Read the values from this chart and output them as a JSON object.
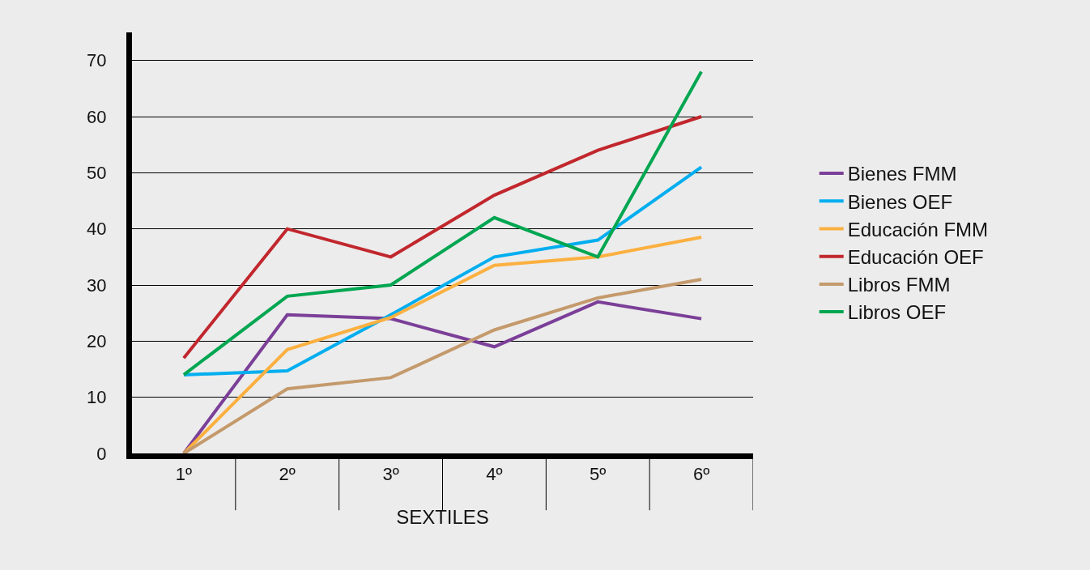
{
  "chart_data": {
    "type": "line",
    "xlabel": "SEXTILES",
    "categories": [
      "1º",
      "2º",
      "3º",
      "4º",
      "5º",
      "6º"
    ],
    "ylim": [
      0,
      75
    ],
    "yticks": [
      0,
      10,
      20,
      30,
      40,
      50,
      60,
      70
    ],
    "grid": "y",
    "legend": "right",
    "marker": "none",
    "line_style": "solid",
    "series": [
      {
        "name": "Bienes FMM",
        "color": "#7b3f98",
        "values": [
          0,
          24.7,
          24,
          19,
          27,
          24
        ]
      },
      {
        "name": "Bienes OEF",
        "color": "#00aeef",
        "values": [
          14,
          14.7,
          24.7,
          35,
          38,
          51
        ]
      },
      {
        "name": "Educación FMM",
        "color": "#fbb040",
        "values": [
          0,
          18.5,
          24.2,
          33.5,
          35,
          38.5
        ]
      },
      {
        "name": "Educación OEF",
        "color": "#c1272d",
        "values": [
          17,
          40,
          35,
          46,
          54,
          60
        ]
      },
      {
        "name": "Libros FMM",
        "color": "#c49a6c",
        "values": [
          0,
          11.5,
          13.5,
          22,
          27.7,
          31
        ]
      },
      {
        "name": "Libros OEF",
        "color": "#00a651",
        "values": [
          14,
          28,
          30,
          42,
          35,
          68
        ]
      }
    ]
  }
}
